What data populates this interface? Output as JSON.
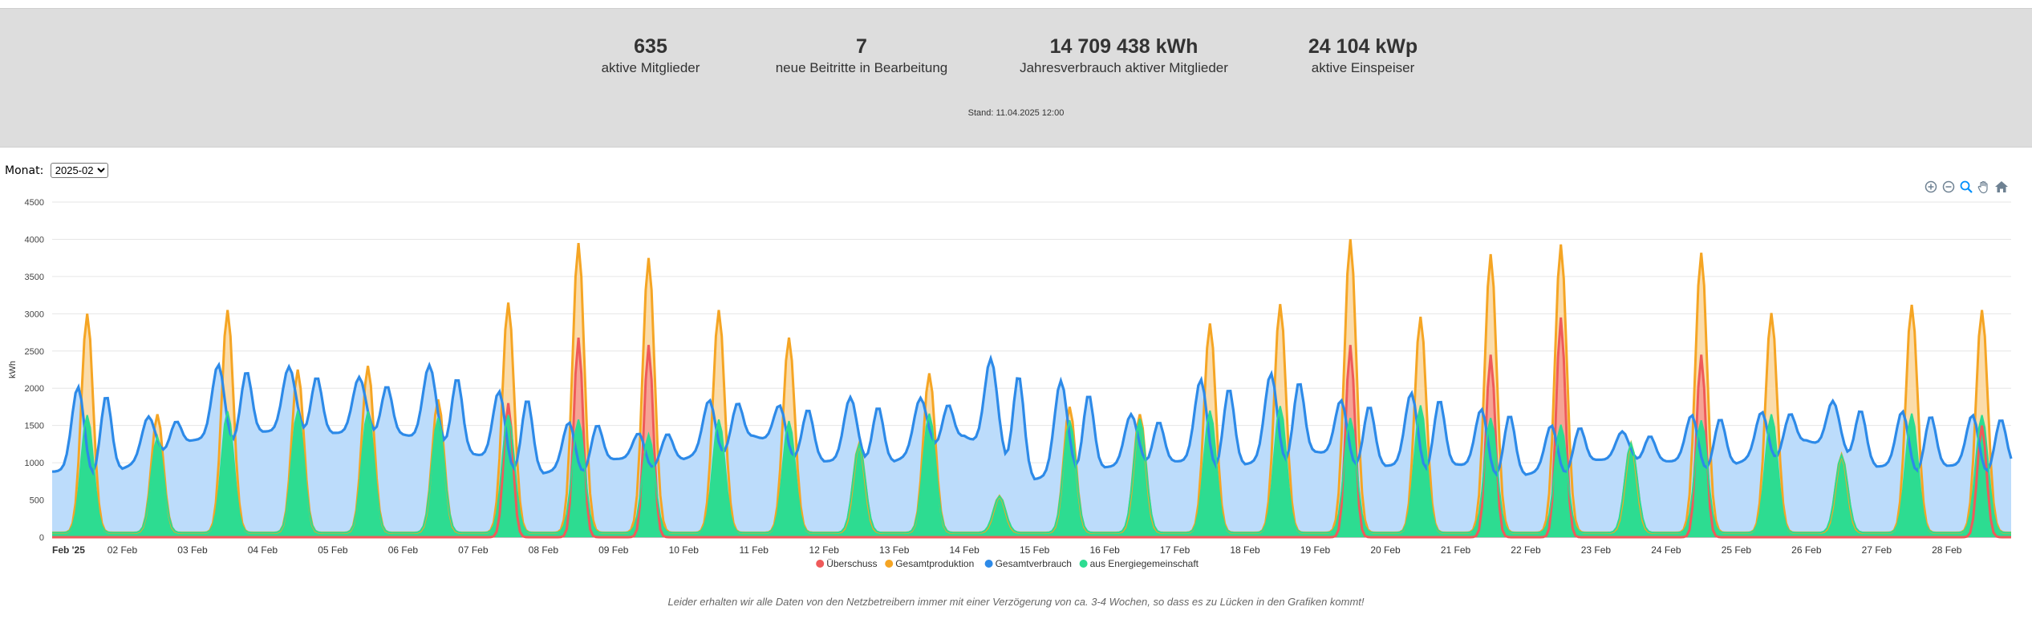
{
  "stats": [
    {
      "value": "635",
      "label": "aktive Mitglieder"
    },
    {
      "value": "7",
      "label": "neue Beitritte in Bearbeitung"
    },
    {
      "value": "14 709 438 kWh",
      "label": "Jahresverbrauch aktiver Mitglieder"
    },
    {
      "value": "24 104 kWp",
      "label": "aktive Einspeiser"
    }
  ],
  "stand": "Stand: 11.04.2025 12:00",
  "month": {
    "label": "Monat:",
    "selected": "2025-02"
  },
  "toolbar_icons": [
    "zoom-in-icon",
    "zoom-out-icon",
    "selection-zoom-icon",
    "pan-hand-icon",
    "home-icon"
  ],
  "colors": {
    "ueberschuss": "#ef5a5a",
    "gesamtproduktion": "#f5a524",
    "gesamtverbrauch": "#2d8ae8",
    "energiegemeinschaft": "#2ddc91",
    "verbrauch_fill": "#bcdcfb",
    "produktion_fill": "#fbdcaa",
    "ueberschuss_fill": "#f6a394"
  },
  "chart_data": {
    "type": "area",
    "ylabel": "kWh",
    "ylim": [
      0,
      4500
    ],
    "yticks": [
      0,
      500,
      1000,
      1500,
      2000,
      2500,
      3000,
      3500,
      4000,
      4500
    ],
    "xlim": [
      "2025-02-01",
      "2025-02-28 22:00"
    ],
    "xticks": [
      "Feb '25",
      "02 Feb",
      "03 Feb",
      "04 Feb",
      "05 Feb",
      "06 Feb",
      "07 Feb",
      "08 Feb",
      "09 Feb",
      "10 Feb",
      "11 Feb",
      "12 Feb",
      "13 Feb",
      "14 Feb",
      "15 Feb",
      "16 Feb",
      "17 Feb",
      "18 Feb",
      "19 Feb",
      "20 Feb",
      "21 Feb",
      "22 Feb",
      "23 Feb",
      "24 Feb",
      "25 Feb",
      "26 Feb",
      "27 Feb",
      "28 Feb"
    ],
    "legend": [
      "Überschuss",
      "Gesamtproduktion",
      "Gesamtverbrauch",
      "aus Energiegemeinschaft"
    ],
    "legend_position": "bottom-center",
    "grid": true,
    "daily_peaks": {
      "dates": [
        "2025-02-01",
        "2025-02-02",
        "2025-02-03",
        "2025-02-04",
        "2025-02-05",
        "2025-02-06",
        "2025-02-07",
        "2025-02-08",
        "2025-02-09",
        "2025-02-10",
        "2025-02-11",
        "2025-02-12",
        "2025-02-13",
        "2025-02-14",
        "2025-02-15",
        "2025-02-16",
        "2025-02-17",
        "2025-02-18",
        "2025-02-19",
        "2025-02-20",
        "2025-02-21",
        "2025-02-22",
        "2025-02-23",
        "2025-02-24",
        "2025-02-25",
        "2025-02-26",
        "2025-02-27",
        "2025-02-28"
      ],
      "gesamtproduktion": [
        3000,
        1650,
        3050,
        2250,
        2300,
        1850,
        3150,
        3950,
        3750,
        3050,
        2680,
        1250,
        2200,
        550,
        1750,
        1650,
        2870,
        3130,
        4000,
        2960,
        3800,
        3930,
        1250,
        3820,
        3010,
        1100,
        3120,
        3050
      ],
      "gesamtverbrauch": [
        2080,
        1620,
        2380,
        2290,
        2150,
        2310,
        2020,
        1600,
        1450,
        1900,
        1830,
        1880,
        1870,
        2400,
        2100,
        1650,
        2180,
        2260,
        1900,
        2000,
        1780,
        1560,
        1420,
        1700,
        1740,
        1830,
        1750,
        1700
      ],
      "ueberschuss": [
        0,
        0,
        0,
        0,
        0,
        0,
        1800,
        2680,
        2580,
        0,
        0,
        0,
        0,
        0,
        0,
        0,
        0,
        0,
        2580,
        0,
        2450,
        2950,
        0,
        2450,
        0,
        0,
        0,
        1500
      ],
      "aus_energiegemeinschaft": [
        1640,
        1350,
        1690,
        1700,
        1690,
        1600,
        1640,
        1580,
        1380,
        1580,
        1560,
        1240,
        1660,
        550,
        1570,
        1590,
        1700,
        1760,
        1600,
        1770,
        1600,
        1510,
        1260,
        1570,
        1650,
        1100,
        1660,
        1640
      ],
      "night_verbrauch": [
        880,
        920,
        1300,
        1420,
        1400,
        1380,
        1120,
        860,
        1050,
        1050,
        1360,
        1020,
        1020,
        1360,
        780,
        940,
        1020,
        980,
        1150,
        960,
        980,
        840,
        1040,
        1020,
        990,
        1300,
        950,
        960
      ]
    }
  },
  "footnote": "Leider erhalten wir alle Daten von den Netzbetreibern immer mit einer Verzögerung von ca. 3-4 Wochen, so dass es zu Lücken in den Grafiken kommt!"
}
